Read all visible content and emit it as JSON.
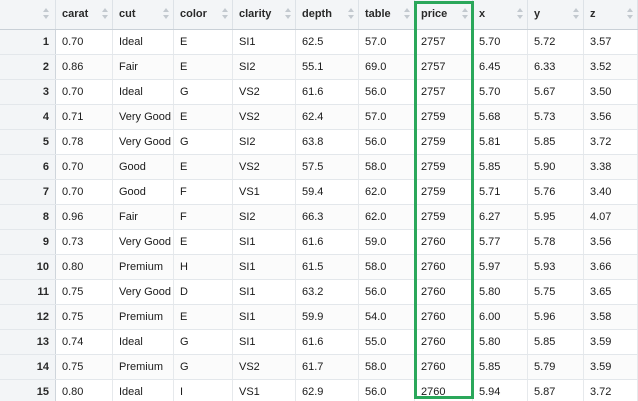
{
  "table": {
    "columns": [
      "carat",
      "cut",
      "color",
      "clarity",
      "depth",
      "table",
      "price",
      "x",
      "y",
      "z"
    ],
    "highlighted_column": "price",
    "highlight_color": "#2aa75a",
    "rows": [
      {
        "index": "1",
        "cells": [
          "0.70",
          "Ideal",
          "E",
          "SI1",
          "62.5",
          "57.0",
          "2757",
          "5.70",
          "5.72",
          "3.57"
        ]
      },
      {
        "index": "2",
        "cells": [
          "0.86",
          "Fair",
          "E",
          "SI2",
          "55.1",
          "69.0",
          "2757",
          "6.45",
          "6.33",
          "3.52"
        ]
      },
      {
        "index": "3",
        "cells": [
          "0.70",
          "Ideal",
          "G",
          "VS2",
          "61.6",
          "56.0",
          "2757",
          "5.70",
          "5.67",
          "3.50"
        ]
      },
      {
        "index": "4",
        "cells": [
          "0.71",
          "Very Good",
          "E",
          "VS2",
          "62.4",
          "57.0",
          "2759",
          "5.68",
          "5.73",
          "3.56"
        ]
      },
      {
        "index": "5",
        "cells": [
          "0.78",
          "Very Good",
          "G",
          "SI2",
          "63.8",
          "56.0",
          "2759",
          "5.81",
          "5.85",
          "3.72"
        ]
      },
      {
        "index": "6",
        "cells": [
          "0.70",
          "Good",
          "E",
          "VS2",
          "57.5",
          "58.0",
          "2759",
          "5.85",
          "5.90",
          "3.38"
        ]
      },
      {
        "index": "7",
        "cells": [
          "0.70",
          "Good",
          "F",
          "VS1",
          "59.4",
          "62.0",
          "2759",
          "5.71",
          "5.76",
          "3.40"
        ]
      },
      {
        "index": "8",
        "cells": [
          "0.96",
          "Fair",
          "F",
          "SI2",
          "66.3",
          "62.0",
          "2759",
          "6.27",
          "5.95",
          "4.07"
        ]
      },
      {
        "index": "9",
        "cells": [
          "0.73",
          "Very Good",
          "E",
          "SI1",
          "61.6",
          "59.0",
          "2760",
          "5.77",
          "5.78",
          "3.56"
        ]
      },
      {
        "index": "10",
        "cells": [
          "0.80",
          "Premium",
          "H",
          "SI1",
          "61.5",
          "58.0",
          "2760",
          "5.97",
          "5.93",
          "3.66"
        ]
      },
      {
        "index": "11",
        "cells": [
          "0.75",
          "Very Good",
          "D",
          "SI1",
          "63.2",
          "56.0",
          "2760",
          "5.80",
          "5.75",
          "3.65"
        ]
      },
      {
        "index": "12",
        "cells": [
          "0.75",
          "Premium",
          "E",
          "SI1",
          "59.9",
          "54.0",
          "2760",
          "6.00",
          "5.96",
          "3.58"
        ]
      },
      {
        "index": "13",
        "cells": [
          "0.74",
          "Ideal",
          "G",
          "SI1",
          "61.6",
          "55.0",
          "2760",
          "5.80",
          "5.85",
          "3.59"
        ]
      },
      {
        "index": "14",
        "cells": [
          "0.75",
          "Premium",
          "G",
          "VS2",
          "61.7",
          "58.0",
          "2760",
          "5.85",
          "5.79",
          "3.59"
        ]
      },
      {
        "index": "15",
        "cells": [
          "0.80",
          "Ideal",
          "I",
          "VS1",
          "62.9",
          "56.0",
          "2760",
          "5.94",
          "5.87",
          "3.72"
        ]
      }
    ]
  }
}
